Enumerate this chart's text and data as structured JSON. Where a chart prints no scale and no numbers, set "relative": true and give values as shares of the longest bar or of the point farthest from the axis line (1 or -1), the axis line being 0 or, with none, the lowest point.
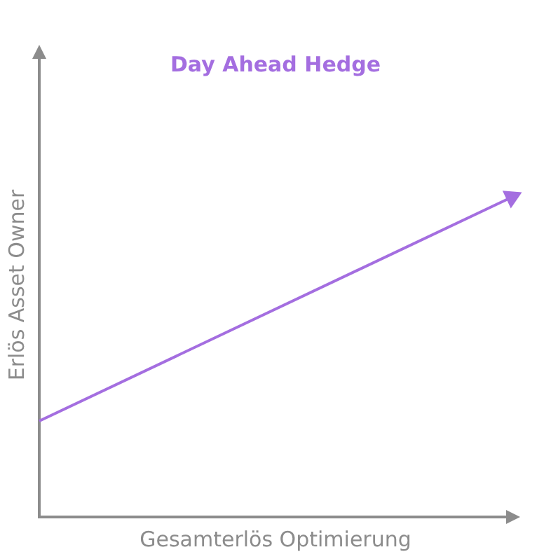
{
  "chart_data": {
    "type": "line",
    "title": "Day Ahead Hedge",
    "xlabel": "Gesamterlös Optimierung",
    "ylabel": "Erlös Asset Owner",
    "relative": true,
    "categories": [
      null,
      null
    ],
    "series": [
      {
        "color": "#a46ee0",
        "values": [
          0.3,
          1
        ]
      }
    ],
    "grid": false,
    "legend": false,
    "line_style": "solid"
  }
}
